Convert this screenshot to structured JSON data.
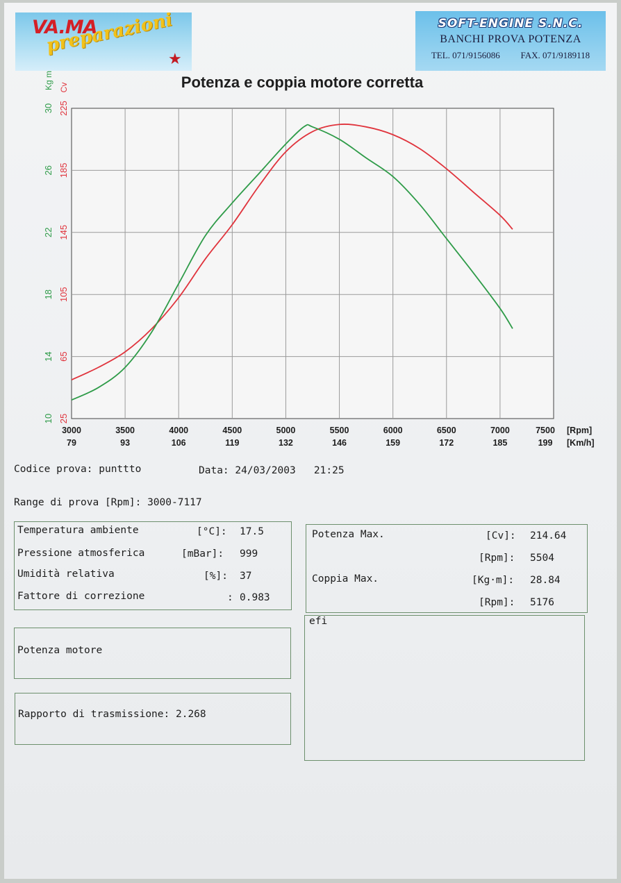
{
  "header": {
    "left_logo": {
      "brand": "VA.MA",
      "script": "preparazioni",
      "icon": "star-emblem-icon"
    },
    "right_logo": {
      "brand": "SOFT-ENGINE S.N.C.",
      "subtitle": "BANCHI PROVA POTENZA",
      "tel": "TEL. 071/9156086",
      "fax": "FAX. 071/9189118"
    }
  },
  "chart_data": {
    "type": "line",
    "title": "Potenza e coppia motore corretta",
    "y_left_torque": {
      "label": "Kg m",
      "ticks": [
        "10",
        "14",
        "18",
        "22",
        "26",
        "30"
      ],
      "ylim": [
        10,
        30
      ],
      "color": "#2e9b48"
    },
    "y_left_power": {
      "label": "Cv",
      "ticks": [
        "25",
        "65",
        "105",
        "145",
        "185",
        "225"
      ],
      "ylim": [
        25,
        225
      ],
      "color": "#e0333c"
    },
    "x_rpm_ticks": [
      "3000",
      "3500",
      "4000",
      "4500",
      "5000",
      "5500",
      "6000",
      "6500",
      "7000",
      "7500"
    ],
    "x_kmh_ticks": [
      "79",
      "93",
      "106",
      "119",
      "132",
      "146",
      "159",
      "172",
      "185",
      "199"
    ],
    "x_unit_rpm": "[Rpm]",
    "x_unit_kmh": "[Km/h]",
    "xlim": [
      3000,
      7500
    ],
    "grid": true,
    "series": [
      {
        "quantity": "power_cv",
        "color": "#e0333c",
        "x": [
          3000,
          3250,
          3500,
          3750,
          4000,
          4250,
          4500,
          4750,
          5000,
          5250,
          5500,
          5750,
          6000,
          6250,
          6500,
          6750,
          7000,
          7117
        ],
        "y": [
          50,
          58,
          68,
          83,
          103,
          128,
          150,
          175,
          197,
          210,
          214.6,
          213,
          208,
          199,
          186,
          171,
          156,
          147
        ]
      },
      {
        "quantity": "torque_kgm",
        "color": "#2e9b48",
        "x": [
          3000,
          3250,
          3500,
          3750,
          4000,
          4250,
          4500,
          4750,
          5000,
          5176,
          5250,
          5500,
          5750,
          6000,
          6250,
          6500,
          6750,
          7000,
          7117
        ],
        "y": [
          11.2,
          12.0,
          13.3,
          15.6,
          18.7,
          21.8,
          23.9,
          25.8,
          27.7,
          28.84,
          28.8,
          28.0,
          26.8,
          25.6,
          23.8,
          21.6,
          19.4,
          17.1,
          15.8
        ]
      }
    ]
  },
  "test_info": {
    "code_label": "Codice prova:",
    "code_value": "punttto",
    "date_label": "Data:",
    "date_value": "24/03/2003",
    "time_value": "21:25",
    "range_label": "Range di prova [Rpm]:",
    "range_value": "3000-7117"
  },
  "conditions": {
    "temp_label": "Temperatura ambiente",
    "temp_unit": "[°C]:",
    "temp_value": "17.5",
    "press_label": "Pressione atmosferica",
    "press_unit": "[mBar]:",
    "press_value": "999",
    "hum_label": "Umidità relativa",
    "hum_unit": "[%]:",
    "hum_value": "37",
    "corr_label": "Fattore di correzione",
    "corr_unit": ":",
    "corr_value": "0.983"
  },
  "max_values": {
    "power_label": "Potenza Max.",
    "power_unit": "[Cv]:",
    "power_value": "214.64",
    "power_rpm_unit": "[Rpm]:",
    "power_rpm_value": "5504",
    "torque_label": "Coppia Max.",
    "torque_unit": "[Kg·m]:",
    "torque_value": "28.84",
    "torque_rpm_unit": "[Rpm]:",
    "torque_rpm_value": "5176"
  },
  "boxes": {
    "engine_power_label": "Potenza motore",
    "transmission_label": "Rapporto di trasmissione:",
    "transmission_value": "2.268",
    "notes_text": "efi"
  }
}
